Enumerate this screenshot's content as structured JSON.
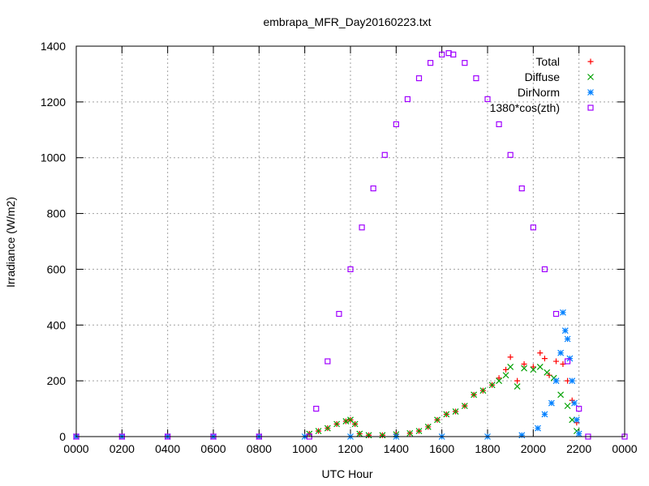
{
  "chart_data": {
    "type": "scatter",
    "title": "embrapa_MFR_Day20160223.txt",
    "xlabel": "UTC Hour",
    "ylabel": "Irradiance (W/m2)",
    "xlim": [
      0,
      24
    ],
    "ylim": [
      0,
      1400
    ],
    "x_ticks": [
      0,
      2,
      4,
      6,
      8,
      10,
      12,
      14,
      16,
      18,
      20,
      22,
      24
    ],
    "x_tick_labels": [
      "0000",
      "0200",
      "0400",
      "0600",
      "0800",
      "1000",
      "1200",
      "1400",
      "1600",
      "1800",
      "2000",
      "2200",
      "0000"
    ],
    "y_ticks": [
      0,
      200,
      400,
      600,
      800,
      1000,
      1200,
      1400
    ],
    "y_tick_labels": [
      "0",
      "200",
      "400",
      "600",
      "800",
      "1000",
      "1200",
      "1400"
    ],
    "grid": true,
    "legend_position": "top-right",
    "series": [
      {
        "name": "Total",
        "color": "#ff0000",
        "marker": "plus",
        "x": [
          10.2,
          10.6,
          11.0,
          11.4,
          11.8,
          12.0,
          12.2,
          12.4,
          12.8,
          13.4,
          14.0,
          14.6,
          15.0,
          15.4,
          15.8,
          16.2,
          16.6,
          17.0,
          17.4,
          17.8,
          18.2,
          18.5,
          18.8,
          19.0,
          19.3,
          19.6,
          20.0,
          20.3,
          20.5,
          20.7,
          21.0,
          21.3,
          21.5,
          21.7,
          21.9
        ],
        "y": [
          10,
          20,
          30,
          45,
          55,
          60,
          45,
          10,
          5,
          5,
          8,
          12,
          20,
          35,
          60,
          80,
          90,
          110,
          150,
          165,
          185,
          210,
          240,
          285,
          200,
          260,
          250,
          300,
          280,
          220,
          270,
          260,
          200,
          130,
          50
        ]
      },
      {
        "name": "Diffuse",
        "color": "#00a000",
        "marker": "cross",
        "x": [
          10.2,
          10.6,
          11.0,
          11.4,
          11.8,
          12.0,
          12.2,
          12.4,
          12.8,
          13.4,
          14.0,
          14.6,
          15.0,
          15.4,
          15.8,
          16.2,
          16.6,
          17.0,
          17.4,
          17.8,
          18.2,
          18.5,
          18.8,
          19.0,
          19.3,
          19.6,
          20.0,
          20.3,
          20.6,
          20.9,
          21.2,
          21.5,
          21.7,
          21.9
        ],
        "y": [
          10,
          20,
          30,
          45,
          55,
          60,
          45,
          10,
          5,
          5,
          8,
          12,
          20,
          35,
          60,
          80,
          90,
          110,
          150,
          165,
          185,
          200,
          220,
          250,
          180,
          245,
          240,
          250,
          230,
          210,
          150,
          110,
          60,
          20
        ]
      },
      {
        "name": "DirNorm",
        "color": "#0080ff",
        "marker": "star",
        "x": [
          0,
          2,
          4,
          6,
          8,
          10,
          12,
          14,
          16,
          18,
          19.5,
          20.2,
          20.5,
          20.8,
          21.0,
          21.2,
          21.3,
          21.4,
          21.5,
          21.6,
          21.7,
          21.8,
          21.9,
          22.0
        ],
        "y": [
          0,
          0,
          0,
          0,
          0,
          0,
          0,
          0,
          0,
          0,
          5,
          30,
          80,
          120,
          200,
          300,
          445,
          380,
          350,
          280,
          200,
          120,
          60,
          10
        ]
      },
      {
        "name": "1380*cos(zth)",
        "color": "#a000ff",
        "marker": "square",
        "x": [
          0,
          2,
          4,
          6,
          8,
          10.2,
          10.5,
          11.0,
          11.5,
          12.0,
          12.5,
          13.0,
          13.5,
          14.0,
          14.5,
          15.0,
          15.5,
          16.0,
          16.3,
          16.5,
          17.0,
          17.5,
          18.0,
          18.5,
          19.0,
          19.5,
          20.0,
          20.5,
          21.0,
          21.5,
          22.0,
          22.4,
          24
        ],
        "y": [
          0,
          0,
          0,
          0,
          0,
          0,
          100,
          270,
          440,
          600,
          750,
          890,
          1010,
          1120,
          1210,
          1285,
          1340,
          1370,
          1375,
          1370,
          1340,
          1285,
          1210,
          1120,
          1010,
          890,
          750,
          600,
          440,
          270,
          100,
          0,
          0
        ]
      }
    ]
  }
}
